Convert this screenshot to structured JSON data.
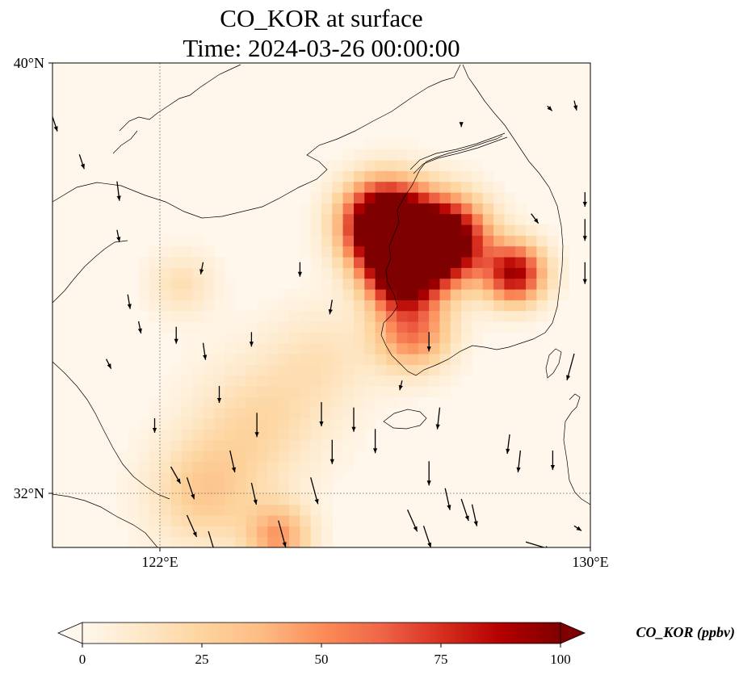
{
  "title": {
    "line1": "CO_KOR at surface",
    "line2": "Time: 2024-03-26 00:00:00"
  },
  "map": {
    "lon_range": [
      120,
      130
    ],
    "lat_range": [
      31,
      40
    ],
    "lat_tick_labels": [
      {
        "lat": 40,
        "label": "40°N"
      },
      {
        "lat": 32,
        "label": "32°N"
      }
    ],
    "lon_tick_labels": [
      {
        "lon": 122,
        "label": "122°E"
      },
      {
        "lon": 130,
        "label": "130°E"
      }
    ],
    "gridlines": {
      "lon": [
        122
      ],
      "lat": [
        32
      ],
      "style": "dotted"
    }
  },
  "colorbar": {
    "label": "CO_KOR (ppbv)",
    "ticks": [
      {
        "value": 0,
        "label": "0"
      },
      {
        "value": 25,
        "label": "25"
      },
      {
        "value": 50,
        "label": "50"
      },
      {
        "value": 75,
        "label": "75"
      },
      {
        "value": 100,
        "label": "100"
      }
    ],
    "range": [
      0,
      100
    ],
    "extend": "both",
    "colormap": "OrRd",
    "colors": [
      "#fff7ec",
      "#fee8c8",
      "#fdd49e",
      "#fdbb84",
      "#fc8d59",
      "#ef6548",
      "#d7301f",
      "#b30000",
      "#7f0000"
    ]
  },
  "field": {
    "blobs": [
      {
        "lon": 126.2,
        "lat": 37.0,
        "r": 0.75,
        "amp": 160
      },
      {
        "lon": 127.3,
        "lat": 36.7,
        "r": 0.75,
        "amp": 130
      },
      {
        "lon": 126.5,
        "lat": 36.1,
        "r": 0.65,
        "amp": 110
      },
      {
        "lon": 128.6,
        "lat": 36.1,
        "r": 0.55,
        "amp": 90
      },
      {
        "lon": 126.7,
        "lat": 35.0,
        "r": 0.7,
        "amp": 55
      },
      {
        "lon": 123.8,
        "lat": 33.3,
        "r": 1.2,
        "amp": 22
      },
      {
        "lon": 122.8,
        "lat": 32.0,
        "r": 1.0,
        "amp": 28
      },
      {
        "lon": 124.2,
        "lat": 31.2,
        "r": 0.6,
        "amp": 45
      },
      {
        "lon": 122.4,
        "lat": 35.9,
        "r": 0.6,
        "amp": 18
      },
      {
        "lon": 125.0,
        "lat": 34.5,
        "r": 1.0,
        "amp": 15
      }
    ]
  },
  "wind_vectors": [
    [
      120.0,
      39.0,
      0.2,
      -0.6
    ],
    [
      120.5,
      38.3,
      0.2,
      -0.6
    ],
    [
      121.2,
      37.8,
      0.1,
      -0.8
    ],
    [
      121.2,
      36.9,
      0.1,
      -0.5
    ],
    [
      121.4,
      35.7,
      0.1,
      -0.6
    ],
    [
      121.6,
      35.2,
      0.1,
      -0.5
    ],
    [
      121.0,
      34.5,
      0.2,
      -0.4
    ],
    [
      121.9,
      33.4,
      0.0,
      -0.6
    ],
    [
      122.2,
      32.5,
      0.4,
      -0.7
    ],
    [
      122.5,
      32.3,
      0.3,
      -0.9
    ],
    [
      122.5,
      31.6,
      0.4,
      -0.9
    ],
    [
      122.9,
      31.3,
      0.3,
      -1.0
    ],
    [
      122.3,
      35.1,
      0.0,
      -0.7
    ],
    [
      122.8,
      34.8,
      0.1,
      -0.7
    ],
    [
      123.1,
      34.0,
      0.0,
      -0.7
    ],
    [
      123.3,
      32.8,
      0.2,
      -0.9
    ],
    [
      123.7,
      32.2,
      0.2,
      -0.9
    ],
    [
      123.8,
      33.5,
      0.0,
      -1.0
    ],
    [
      124.2,
      31.5,
      0.3,
      -1.1
    ],
    [
      124.8,
      32.3,
      0.3,
      -1.1
    ],
    [
      125.2,
      33.0,
      0.0,
      -1.0
    ],
    [
      125.0,
      33.7,
      0.0,
      -1.0
    ],
    [
      125.6,
      33.6,
      0.0,
      -1.0
    ],
    [
      126.0,
      33.2,
      0.0,
      -1.0
    ],
    [
      126.6,
      31.7,
      0.4,
      -0.9
    ],
    [
      126.9,
      31.4,
      0.3,
      -0.9
    ],
    [
      127.0,
      32.6,
      0.0,
      -1.0
    ],
    [
      127.2,
      33.6,
      -0.1,
      -0.9
    ],
    [
      127.3,
      32.1,
      0.2,
      -0.9
    ],
    [
      127.6,
      31.9,
      0.3,
      -0.9
    ],
    [
      127.8,
      31.8,
      0.2,
      -0.9
    ],
    [
      127.0,
      35.0,
      0.0,
      -0.8
    ],
    [
      128.5,
      33.1,
      -0.1,
      -0.8
    ],
    [
      128.7,
      32.8,
      -0.1,
      -0.9
    ],
    [
      129.3,
      32.8,
      0.0,
      -0.8
    ],
    [
      129.7,
      34.6,
      -0.3,
      -1.1
    ],
    [
      129.9,
      36.3,
      0.0,
      -0.9
    ],
    [
      129.9,
      37.1,
      0.0,
      -0.9
    ],
    [
      129.9,
      37.6,
      0.0,
      -0.6
    ],
    [
      128.9,
      37.2,
      0.3,
      -0.4
    ],
    [
      129.7,
      39.3,
      0.1,
      -0.4
    ],
    [
      129.2,
      39.2,
      0.2,
      -0.2
    ],
    [
      127.6,
      38.9,
      0.0,
      -0.2
    ],
    [
      124.6,
      36.3,
      0.0,
      -0.6
    ],
    [
      125.2,
      35.6,
      -0.1,
      -0.6
    ],
    [
      126.5,
      34.1,
      -0.1,
      -0.4
    ],
    [
      122.8,
      36.3,
      -0.1,
      -0.5
    ],
    [
      123.7,
      35.0,
      0.0,
      -0.6
    ],
    [
      128.8,
      31.1,
      1.0,
      -0.3
    ],
    [
      129.7,
      31.4,
      0.3,
      -0.2
    ]
  ]
}
